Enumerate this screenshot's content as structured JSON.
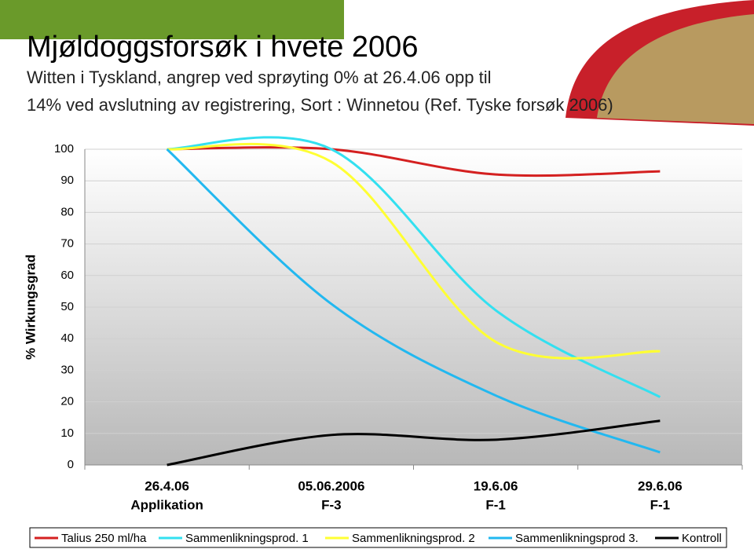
{
  "chart_data": {
    "type": "line",
    "title": "Mjøldoggsforsøk i hvete 2006",
    "subtitle": [
      "Witten i Tyskland, angrep ved sprøyting 0% at 26.4.06 opp til",
      "14% ved  avslutning av registrering, Sort : Winnetou (Ref. Tyske forsøk 2006)"
    ],
    "y_label": "% Wirkungsgrad",
    "categories": [
      "26.4.06",
      "05.06.2006",
      "19.6.06",
      "29.6.06"
    ],
    "category_sublabels": [
      "Applikation",
      "F-3",
      "F-1",
      "F-1"
    ],
    "ylim": [
      0,
      100
    ],
    "yticks": [
      0,
      10,
      20,
      30,
      40,
      50,
      60,
      70,
      80,
      90,
      100
    ],
    "grid": true,
    "legend": "bottom",
    "series": [
      {
        "name": "Talius 250 ml/ha",
        "color": "#d42020",
        "values": [
          100,
          100,
          92,
          93
        ]
      },
      {
        "name": "Sammenlikningsprod. 1",
        "color": "#33e0f0",
        "values": [
          100,
          100,
          49,
          21.5
        ]
      },
      {
        "name": "Sammenlikningsprod. 2",
        "color": "#ffff33",
        "values": [
          100,
          96,
          39,
          36
        ]
      },
      {
        "name": "Sammenlikningsprod 3.",
        "color": "#22b8f0",
        "values": [
          100,
          51,
          22,
          4
        ]
      },
      {
        "name": "Kontroll",
        "color": "#000000",
        "values": [
          0,
          9.5,
          8,
          14
        ]
      }
    ]
  }
}
